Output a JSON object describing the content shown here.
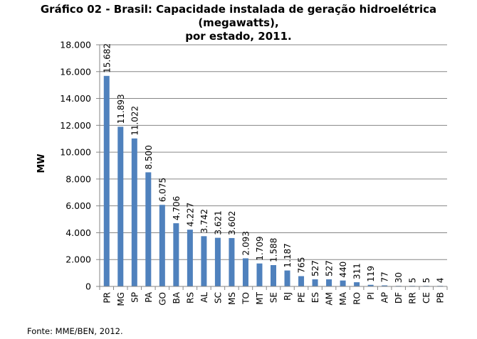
{
  "title_line1": "Gráfico 02 - Brasil: Capacidade instalada de geração hidroelétrica (megawatts),",
  "title_line2": "por estado, 2011.",
  "source": "Fonte: MME/BEN, 2012.",
  "chart_data": {
    "type": "bar",
    "title": "Gráfico 02 - Brasil: Capacidade instalada de geração hidroelétrica (megawatts), por estado, 2011.",
    "xlabel": "",
    "ylabel": "MW",
    "ylim": [
      0,
      18000
    ],
    "yticks": [
      "0",
      "2.000",
      "4.000",
      "6.000",
      "8.000",
      "10.000",
      "12.000",
      "14.000",
      "16.000",
      "18.000"
    ],
    "yticks_values": [
      0,
      2000,
      4000,
      6000,
      8000,
      10000,
      12000,
      14000,
      16000,
      18000
    ],
    "grid": true,
    "bar_color": "#4F81BD",
    "categories": [
      "PR",
      "MG",
      "SP",
      "PA",
      "GO",
      "BA",
      "RS",
      "AL",
      "SC",
      "MS",
      "TO",
      "MT",
      "SE",
      "RJ",
      "PE",
      "ES",
      "AM",
      "MA",
      "RO",
      "PI",
      "AP",
      "DF",
      "RR",
      "CE",
      "PB"
    ],
    "values": [
      15682,
      11893,
      11022,
      8500,
      6075,
      4706,
      4227,
      3742,
      3621,
      3602,
      2093,
      1709,
      1588,
      1187,
      765,
      527,
      527,
      440,
      311,
      119,
      77,
      30,
      5,
      5,
      4
    ],
    "data_labels": [
      "15.682",
      "11.893",
      "11.022",
      "8.500",
      "6.075",
      "4.706",
      "4.227",
      "3.742",
      "3.621",
      "3.602",
      "2.093",
      "1.709",
      "1.588",
      "1.187",
      "765",
      "527",
      "527",
      "440",
      "311",
      "119",
      "77",
      "30",
      "5",
      "5",
      "4"
    ]
  }
}
